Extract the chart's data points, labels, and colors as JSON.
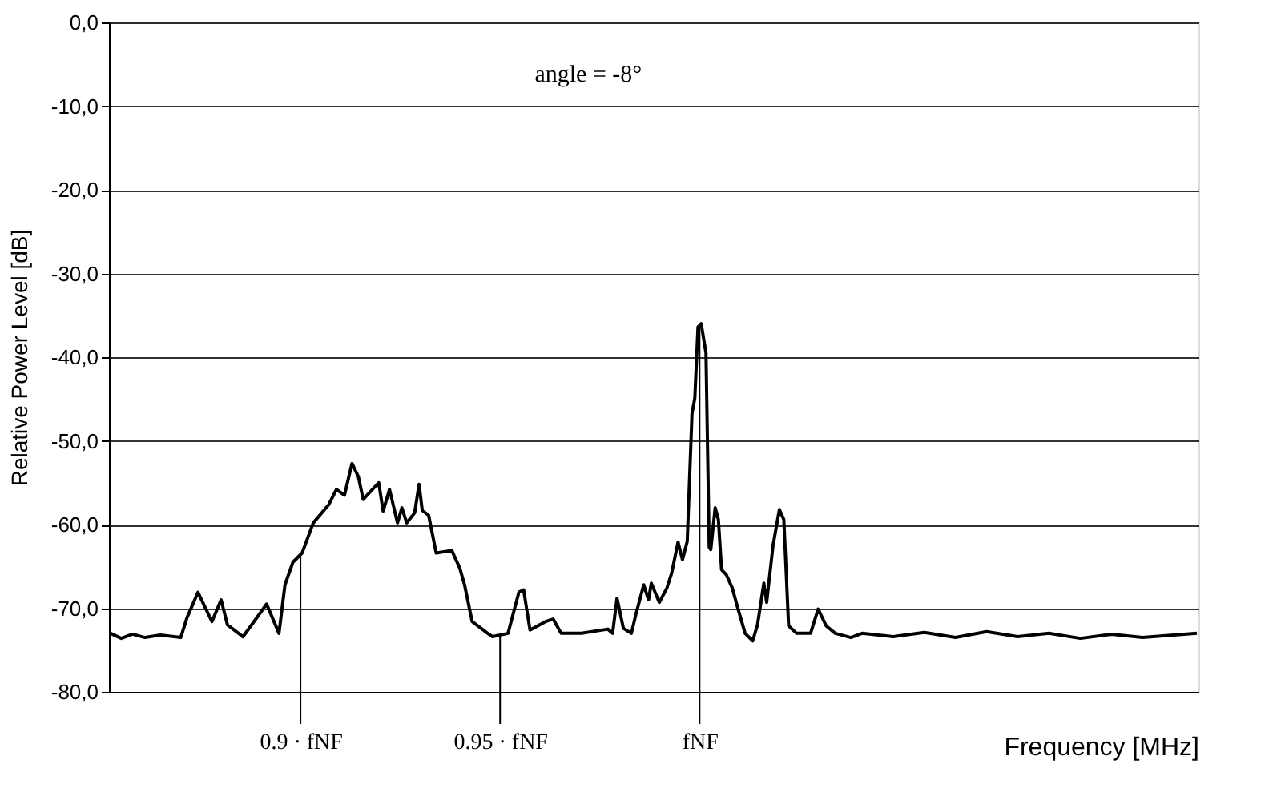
{
  "chart_data": {
    "type": "line",
    "xlabel": "Frequency [MHz]",
    "ylabel": "Relative Power Level [dB]",
    "xlim": [
      0.852,
      1.125
    ],
    "ylim": [
      -80,
      0
    ],
    "yticks": [
      {
        "value": -80,
        "label": "-80,0"
      },
      {
        "value": -70,
        "label": "-70,0"
      },
      {
        "value": -60,
        "label": "-60,0"
      },
      {
        "value": -50,
        "label": "-50,0"
      },
      {
        "value": -40,
        "label": "-40,0"
      },
      {
        "value": -30,
        "label": "-30,0"
      },
      {
        "value": -20,
        "label": "-20,0"
      },
      {
        "value": -10,
        "label": "-10,0"
      },
      {
        "value": 0,
        "label": "0,0"
      }
    ],
    "xticks": [
      {
        "value": 0.9,
        "label": "0.9 · fNF"
      },
      {
        "value": 0.95,
        "label": "0.95 · fNF"
      },
      {
        "value": 1.0,
        "label": "fNF"
      }
    ],
    "grid": "y",
    "marker": "none",
    "line_style": "solid",
    "annotations": [
      "angle = -8°"
    ],
    "ref_lines": [
      {
        "axis": "x",
        "value": 0.9
      },
      {
        "axis": "x",
        "value": 0.95
      },
      {
        "axis": "x",
        "value": 1.0
      }
    ],
    "series": [
      {
        "color": "#000000",
        "x": [
          0.8524,
          0.8551,
          0.8579,
          0.861,
          0.8649,
          0.87,
          0.8715,
          0.8743,
          0.8778,
          0.8801,
          0.8817,
          0.8856,
          0.8891,
          0.8915,
          0.8946,
          0.8961,
          0.8981,
          0.9004,
          0.9032,
          0.9071,
          0.909,
          0.911,
          0.9129,
          0.9145,
          0.9157,
          0.9196,
          0.9207,
          0.9223,
          0.9243,
          0.9254,
          0.9266,
          0.9286,
          0.9297,
          0.9305,
          0.9321,
          0.934,
          0.9379,
          0.9399,
          0.9411,
          0.943,
          0.9469,
          0.9481,
          0.952,
          0.9547,
          0.9559,
          0.9575,
          0.9614,
          0.9633,
          0.9653,
          0.9704,
          0.977,
          0.9782,
          0.9793,
          0.9809,
          0.9829,
          0.984,
          0.986,
          0.9872,
          0.9879,
          0.9899,
          0.9918,
          0.993,
          0.9946,
          0.9957,
          0.9969,
          0.9981,
          0.9988,
          0.9996,
          1.0004,
          1.0016,
          1.0024,
          1.0028,
          1.0039,
          1.0047,
          1.0055,
          1.0067,
          1.0082,
          1.0094,
          1.0114,
          1.0133,
          1.0145,
          1.0161,
          1.0168,
          1.0184,
          1.02,
          1.0211,
          1.0223,
          1.0243,
          1.0278,
          1.0297,
          1.0317,
          1.034,
          1.0379,
          1.0407,
          1.0485,
          1.0563,
          1.0641,
          1.0719,
          1.0797,
          1.0875,
          1.0954,
          1.1032,
          1.111,
          1.1188,
          1.1246
        ],
        "values": [
          -73.0,
          -73.6,
          -73.1,
          -73.5,
          -73.2,
          -73.5,
          -71.2,
          -68.1,
          -71.6,
          -69.0,
          -72.0,
          -73.4,
          -71.1,
          -69.5,
          -73.0,
          -67.2,
          -64.5,
          -63.4,
          -59.8,
          -57.6,
          -55.8,
          -56.5,
          -52.7,
          -54.3,
          -57.0,
          -55.0,
          -58.4,
          -55.8,
          -59.8,
          -58.0,
          -59.8,
          -58.6,
          -55.2,
          -58.3,
          -58.9,
          -63.4,
          -63.1,
          -65.2,
          -67.2,
          -71.6,
          -73.0,
          -73.4,
          -73.0,
          -68.1,
          -67.8,
          -72.6,
          -71.6,
          -71.3,
          -73.0,
          -73.0,
          -72.5,
          -73.0,
          -68.8,
          -72.4,
          -73.0,
          -70.8,
          -67.2,
          -69.0,
          -67.0,
          -69.3,
          -67.6,
          -65.8,
          -62.1,
          -64.2,
          -62.0,
          -46.7,
          -44.9,
          -36.4,
          -36.0,
          -39.5,
          -62.7,
          -63.0,
          -58.0,
          -59.4,
          -65.4,
          -66.0,
          -67.6,
          -69.7,
          -73.0,
          -73.9,
          -72.0,
          -67.0,
          -69.3,
          -62.5,
          -58.2,
          -59.4,
          -72.1,
          -73.0,
          -73.0,
          -70.1,
          -72.1,
          -73.0,
          -73.5,
          -73.0,
          -73.4,
          -72.9,
          -73.5,
          -72.8,
          -73.4,
          -73.0,
          -73.6,
          -73.1,
          -73.5,
          -73.2,
          -73.0
        ]
      }
    ]
  }
}
